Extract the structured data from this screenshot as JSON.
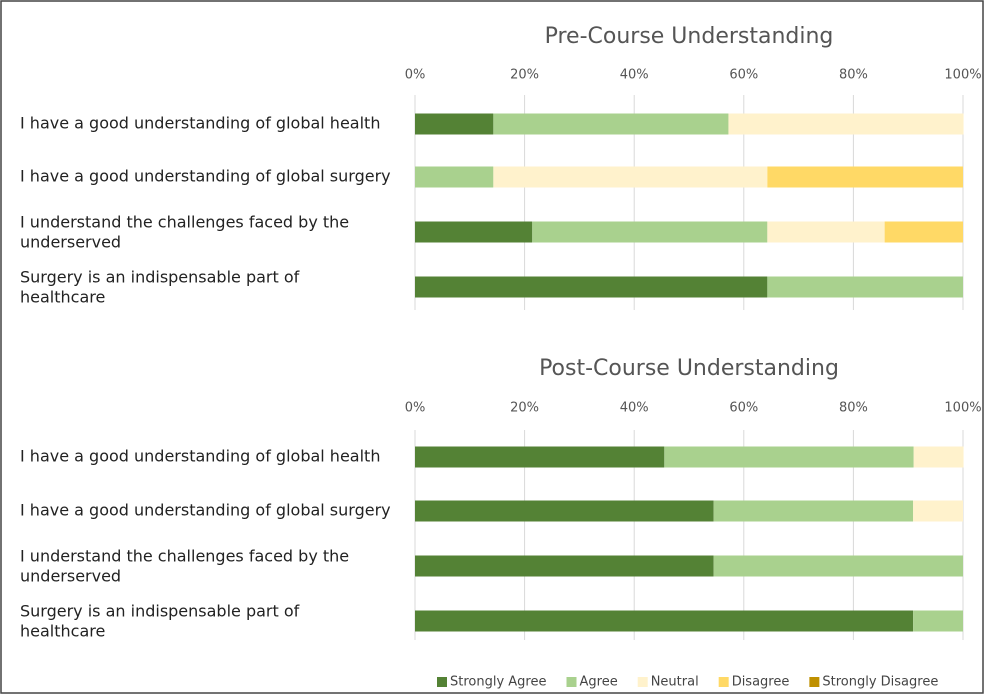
{
  "chart_data": [
    {
      "type": "stacked_bar_h",
      "title": "Pre-Course Understanding",
      "categories": [
        "I have a good understanding of global health",
        "I have a good understanding of global surgery",
        "I understand the challenges faced by the underserved",
        "Surgery is an indispensable part of healthcare"
      ],
      "series": [
        {
          "color": "#548235",
          "values": [
            14.3,
            0,
            21.4,
            64.3
          ]
        },
        {
          "color": "#a9d18e",
          "values": [
            42.9,
            14.3,
            42.9,
            35.7
          ]
        },
        {
          "color": "#fff2cc",
          "values": [
            42.9,
            50,
            21.4,
            0
          ]
        },
        {
          "color": "#ffd966",
          "values": [
            0,
            35.7,
            14.3,
            0
          ]
        },
        {
          "color": "#bf9000",
          "values": [
            0,
            0,
            0,
            0
          ]
        }
      ],
      "xlim": [
        0,
        100
      ],
      "xticks": [
        {
          "value": 0,
          "label": "0%"
        },
        {
          "value": 20,
          "label": "20%"
        },
        {
          "value": 40,
          "label": "40%"
        },
        {
          "value": 60,
          "label": "60%"
        },
        {
          "value": 80,
          "label": "80%"
        },
        {
          "value": 100,
          "label": "100%"
        }
      ],
      "grid": true
    },
    {
      "type": "stacked_bar_h",
      "title": "Post-Course Understanding",
      "categories": [
        "I have a good understanding of global health",
        "I have a good understanding of global surgery",
        "I understand the challenges faced by the underserved",
        "Surgery is an indispensable part of healthcare"
      ],
      "series": [
        {
          "name": "Strongly Agree",
          "color": "#548235",
          "values": [
            45.5,
            54.5,
            54.5,
            90.9
          ]
        },
        {
          "name": "Agree",
          "color": "#a9d18e",
          "values": [
            45.5,
            36.4,
            45.5,
            9.1
          ]
        },
        {
          "name": "Neutral",
          "color": "#fff2cc",
          "values": [
            9.1,
            9.1,
            0,
            0
          ]
        },
        {
          "name": "Disagree",
          "color": "#ffd966",
          "values": [
            0,
            0,
            0,
            0
          ]
        },
        {
          "name": "Strongly Disagree",
          "color": "#bf9000",
          "values": [
            0,
            0,
            0,
            0
          ]
        }
      ],
      "xlim": [
        0,
        100
      ],
      "xticks": [
        {
          "value": 0,
          "label": "0%"
        },
        {
          "value": 20,
          "label": "20%"
        },
        {
          "value": 40,
          "label": "40%"
        },
        {
          "value": 60,
          "label": "60%"
        },
        {
          "value": 80,
          "label": "80%"
        },
        {
          "value": 100,
          "label": "100%"
        }
      ],
      "grid": true,
      "legend": "bottom"
    }
  ]
}
